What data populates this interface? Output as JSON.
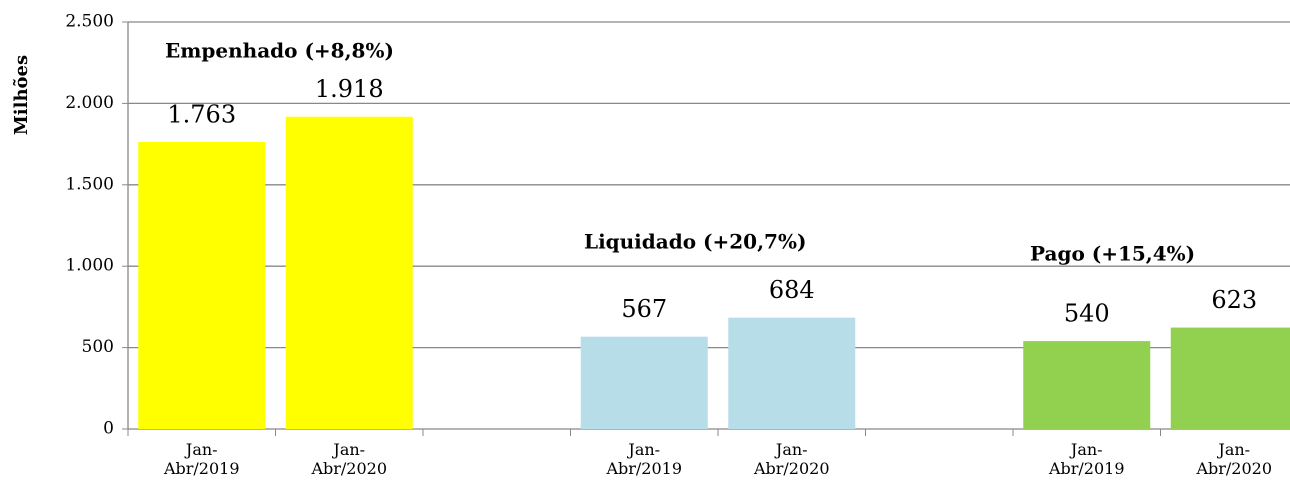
{
  "chart_data": {
    "type": "bar",
    "y_label": "Milhões",
    "categories": [
      "Jan-Abr/2019",
      "Jan-Abr/2020",
      null,
      "Jan-Abr/2019",
      "Jan-Abr/2020",
      null,
      "Jan-Abr/2019",
      "Jan-Abr/2020"
    ],
    "values": [
      1763,
      1918,
      null,
      567,
      684,
      null,
      540,
      623
    ],
    "value_labels": [
      "1.763",
      "1.918",
      null,
      "567",
      "684",
      null,
      "540",
      "623"
    ],
    "colors": [
      "#ffff00",
      "#ffff00",
      null,
      "#b7dde8",
      "#b7dde8",
      null,
      "#92d050",
      "#92d050"
    ],
    "annotations": [
      "Empenhado (+8,8%)",
      "Liquidado (+20,7%)",
      "Pago (+15,4%)"
    ],
    "ylim": [
      0,
      2500
    ],
    "yticks": [
      0,
      500,
      {
        "value": 1000,
        "label": "1.000"
      },
      {
        "value": 1500,
        "label": "1.500"
      },
      {
        "value": 2000,
        "label": "2.000"
      },
      {
        "value": 2500,
        "label": "2.500"
      }
    ],
    "grid": true
  }
}
